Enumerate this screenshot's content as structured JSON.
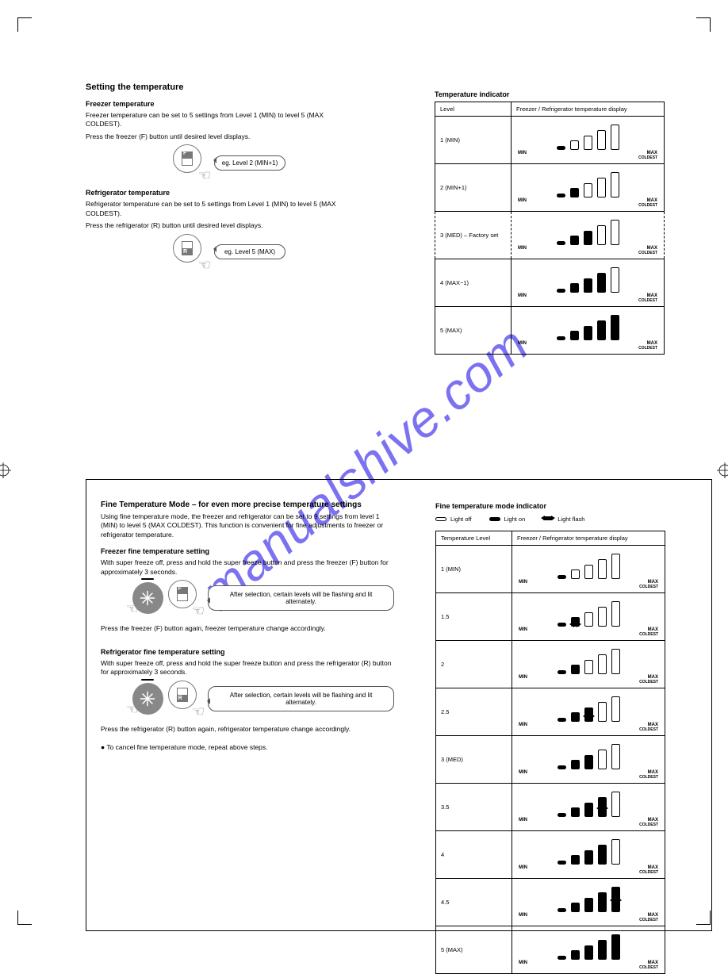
{
  "headings": {
    "setting_temperature": "Setting the temperature",
    "freezer_temp": "Freezer temperature",
    "fridge_temp": "Refrigerator temperature",
    "temp_indicator": "Temperature indicator"
  },
  "freezer": {
    "p1": "Freezer temperature can be set to 5 settings from Level 1 (MIN) to level 5 (MAX COLDEST).",
    "p2": "Press the freezer (F) button until desired level displays.",
    "bubble": "eg. Level 2 (MIN+1)"
  },
  "fridge": {
    "p1": "Refrigerator temperature can be set to 5 settings from Level 1 (MIN) to level 5 (MAX COLDEST).",
    "p2": "Press the refrigerator (R) button until desired level displays.",
    "bubble": "eg. Level 5 (MAX)"
  },
  "table1": {
    "head_level": "Level",
    "head_disp": "Freezer / Refrigerator temperature display",
    "rows": [
      {
        "label": "1 (MIN)",
        "fill": [
          1
        ]
      },
      {
        "label": "2 (MIN+1)",
        "fill": [
          1,
          2
        ]
      },
      {
        "label": "3 (MED) – Factory set",
        "fill": [
          1,
          2,
          3
        ],
        "dashed": true
      },
      {
        "label": "4 (MAX−1)",
        "fill": [
          1,
          2,
          3,
          4
        ]
      },
      {
        "label": "5 (MAX)",
        "fill": [
          1,
          2,
          3,
          4,
          5
        ]
      }
    ],
    "min": "MIN",
    "max": "MAX",
    "coldest": "COLDEST"
  },
  "finemode": {
    "title": "Fine Temperature Mode – for even more precise temperature settings",
    "intro": "Using fine temperature mode, the freezer and refrigerator can be set to 9 settings from level 1 (MIN) to level 5 (MAX COLDEST). This function is convenient for fine adjustments to freezer or refrigerator temperature.",
    "freezer_head": "Freezer fine temperature setting",
    "freezer_p1": "With super freeze off, press and hold the super freeze button and press the freezer (F) button for approximately 3 seconds.",
    "freezer_bubble": "After selection, certain levels will be flashing and lit alternately.",
    "freezer_p2": "Press the freezer (F) button again, freezer temperature change accordingly.",
    "fridge_head": "Refrigerator fine temperature setting",
    "fridge_p1": "With super freeze off, press and hold the super freeze button and press the refrigerator (R) button for approximately 3 seconds.",
    "fridge_bubble": "After selection, certain levels will be flashing and lit alternately.",
    "fridge_p2": "Press the refrigerator (R) button again, refrigerator temperature change accordingly.",
    "cancel": "● To cancel fine temperature mode, repeat above steps."
  },
  "table2": {
    "head": "Fine temperature mode indicator",
    "legend_off": "Light off",
    "legend_on": "Light on",
    "legend_flash": "Light flash",
    "head_level": "Temperature Level",
    "head_disp": "Freezer / Refrigerator temperature display",
    "rows": [
      {
        "label": "1 (MIN)",
        "fill": [
          1
        ],
        "flash": []
      },
      {
        "label": "1.5",
        "fill": [
          1
        ],
        "flash": [
          2
        ]
      },
      {
        "label": "2",
        "fill": [
          1,
          2
        ],
        "flash": []
      },
      {
        "label": "2.5",
        "fill": [
          1,
          2
        ],
        "flash": [
          3
        ]
      },
      {
        "label": "3 (MED)",
        "fill": [
          1,
          2,
          3
        ],
        "flash": []
      },
      {
        "label": "3.5",
        "fill": [
          1,
          2,
          3
        ],
        "flash": [
          4
        ]
      },
      {
        "label": "4",
        "fill": [
          1,
          2,
          3,
          4
        ],
        "flash": []
      },
      {
        "label": "4.5",
        "fill": [
          1,
          2,
          3,
          4
        ],
        "flash": [
          5
        ]
      },
      {
        "label": "5 (MAX)",
        "fill": [
          1,
          2,
          3,
          4,
          5
        ],
        "flash": []
      }
    ]
  },
  "colors": {
    "watermark": "#6e63f0"
  },
  "watermark": "manualshive.com"
}
